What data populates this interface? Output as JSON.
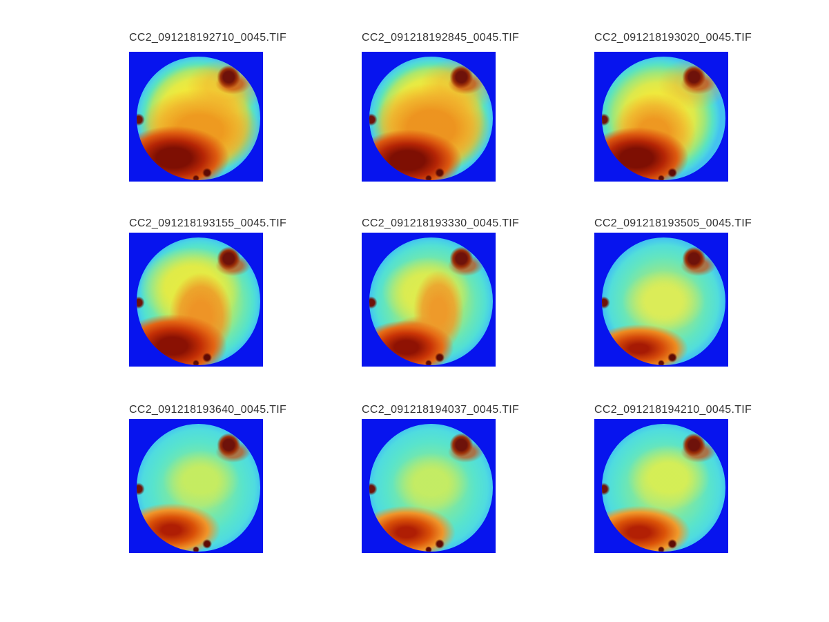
{
  "figure": {
    "background": "#ffffff",
    "colormap": "jet",
    "grid_rows": 3,
    "grid_cols": 3
  },
  "colors": {
    "image_background_blue": "#0714EE",
    "rim_cyan": "#52E2CE",
    "hot_dark_red": "#8A1103",
    "warm_orange": "#EE9426",
    "mid_yellow": "#F1E93B",
    "cool_green": "#A3E982",
    "title_text": "#333333"
  },
  "panels": [
    {
      "filename": "CC2_091218192710_0045.TIF"
    },
    {
      "filename": "CC2_091218192845_0045.TIF"
    },
    {
      "filename": "CC2_091218193020_0045.TIF"
    },
    {
      "filename": "CC2_091218193155_0045.TIF"
    },
    {
      "filename": "CC2_091218193330_0045.TIF"
    },
    {
      "filename": "CC2_091218193505_0045.TIF"
    },
    {
      "filename": "CC2_091218193640_0045.TIF"
    },
    {
      "filename": "CC2_091218194037_0045.TIF"
    },
    {
      "filename": "CC2_091218194210_0045.TIF"
    }
  ],
  "chart_data": {
    "type": "heatmap",
    "layout": "3x3 grid of false-color (jet colormap) circular intensity images on blue square backgrounds, each titled with its TIF filename",
    "colormap": "jet",
    "trend": "overall intensity decreases frame by frame (cooling sequence): row 1 mostly yellow/orange with large dark-red lower-left region; row 2 yellow-green with orange plume and red lower-left; row 3 mostly cyan-green with smaller orange-red lower-left region",
    "panels": [
      {
        "title": "CC2_091218192710_0045.TIF",
        "overall_intensity": "high",
        "features": "yellow disk, orange mid region, large dark-red blob lower-left, dark-red hotspot upper-right, small red speck left edge and bottom, thin cyan rim"
      },
      {
        "title": "CC2_091218192845_0045.TIF",
        "overall_intensity": "high",
        "features": "yellow disk, broad orange center-lower region, dark-red blob lower-left, dark-red hotspot upper-right, cyan rim"
      },
      {
        "title": "CC2_091218193020_0045.TIF",
        "overall_intensity": "high",
        "features": "yellow-green disk, orange plume left-of-center, dark-red blob lower-left, dark-red hotspot upper-right, wider cyan rim on right"
      },
      {
        "title": "CC2_091218193155_0045.TIF",
        "overall_intensity": "medium-high",
        "features": "yellow-green disk with cyan rim, orange plume center-to-bottom, dark-red region lower-left, hotspot upper-right"
      },
      {
        "title": "CC2_091218193330_0045.TIF",
        "overall_intensity": "medium",
        "features": "green-cyan disk, curved orange arc from center to bottom-left, red region lower-left, hotspot upper-right"
      },
      {
        "title": "CC2_091218193505_0045.TIF",
        "overall_intensity": "medium-low",
        "features": "cyan-green disk, faint yellow center, orange-red crescent lower-left, hotspot upper-right"
      },
      {
        "title": "CC2_091218193640_0045.TIF",
        "overall_intensity": "low",
        "features": "cyan disk, pale yellow-green center, orange-red blob lower-left, small dark specks upper-right, left edge and bottom"
      },
      {
        "title": "CC2_091218194037_0045.TIF",
        "overall_intensity": "low",
        "features": "cyan disk, yellow-green center patch, orange-red blob lower-left, small dark specks"
      },
      {
        "title": "CC2_091218194210_0045.TIF",
        "overall_intensity": "low",
        "features": "cyan disk, stronger yellow center patch, orange-red blob lower-left, small dark specks"
      }
    ]
  }
}
